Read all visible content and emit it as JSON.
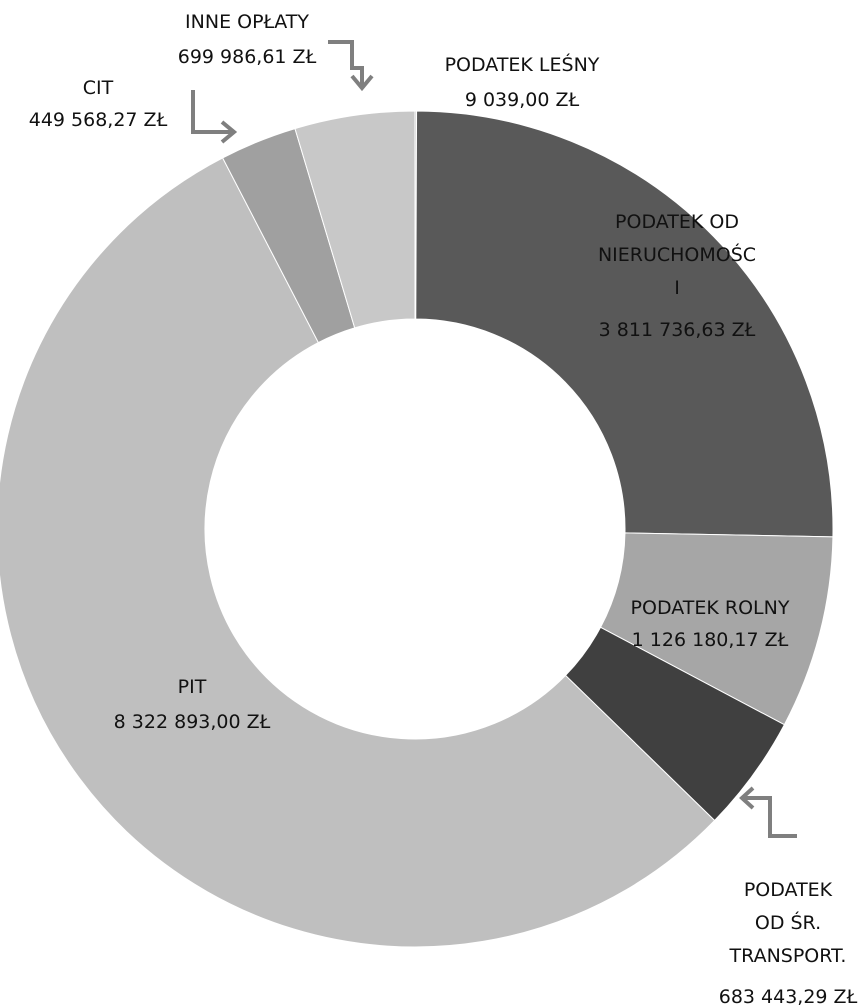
{
  "chart_data": {
    "type": "donut",
    "categories": [
      "PODATEK LEŚNY",
      "PODATEK OD\nNIERUCHOMOŚC\nI",
      "PODATEK ROLNY",
      "PODATEK\nOD ŚR.\nTRANSPORT.",
      "PIT",
      "CIT",
      "INNE OPŁATY"
    ],
    "values": [
      9039.0,
      3811736.63,
      1126180.17,
      683443.29,
      8322893.0,
      449568.27,
      699986.61
    ],
    "value_labels": [
      "9 039,00 ZŁ",
      "3 811 736,63 ZŁ",
      "1 126 180,17 ZŁ",
      "683 443,29 ZŁ",
      "8 322 893,00 ZŁ",
      "449 568,27 ZŁ",
      "699 986,61 ZŁ"
    ],
    "colors": [
      "#c8c8c8",
      "#595959",
      "#a6a6a6",
      "#404040",
      "#bfbfbf",
      "#a0a0a0",
      "#c8c8c8"
    ]
  }
}
